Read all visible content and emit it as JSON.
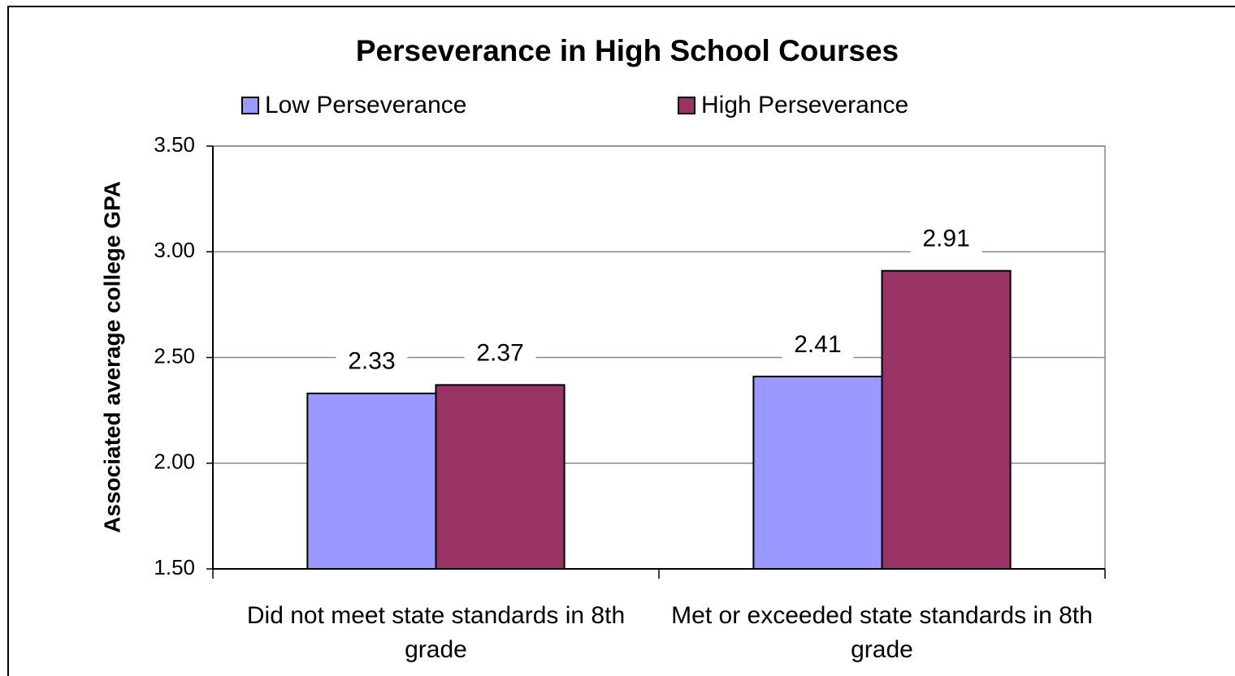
{
  "chart_data": {
    "type": "bar",
    "title": "Perseverance in High School Courses",
    "y_label": "Associated average college GPA",
    "categories": [
      "Did not meet state standards in 8th grade",
      "Met or exceeded state standards in 8th grade"
    ],
    "series": [
      {
        "name": "Low Perseverance",
        "color": "#9999ff",
        "values": [
          2.33,
          2.41
        ]
      },
      {
        "name": "High Perseverance",
        "color": "#993366",
        "values": [
          2.37,
          2.91
        ]
      }
    ],
    "ylim": [
      1.5,
      3.5
    ],
    "yticks": [
      {
        "value": 1.5,
        "label": "1.50"
      },
      {
        "value": 2,
        "label": "2.00"
      },
      {
        "value": 2.5,
        "label": "2.50"
      },
      {
        "value": 3,
        "label": "3.00"
      },
      {
        "value": 3.5,
        "label": "3.50"
      }
    ],
    "grid": true,
    "legend": "top"
  }
}
